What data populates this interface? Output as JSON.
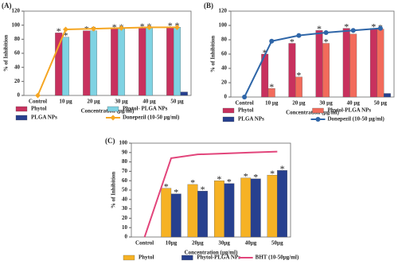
{
  "chart_data": [
    {
      "type": "combo",
      "panel_label": "(A)",
      "ylabel": "% of Inhibition",
      "xlabel": "Concentration (µg/ml)",
      "categories": [
        "Control",
        "10 µg",
        "20 µg",
        "30 µg",
        "40 µg",
        "50 µg"
      ],
      "ylim": [
        0,
        120
      ],
      "yticks": [
        0,
        20,
        40,
        60,
        80,
        100,
        120
      ],
      "series": [
        {
          "name": "Phytol",
          "type": "bar",
          "color": "#c8315e",
          "values": [
            null,
            89,
            92,
            95,
            96,
            97
          ],
          "annotations": [
            null,
            "*",
            "*",
            "*",
            "*",
            "*"
          ]
        },
        {
          "name": "Phytol- PLGA NPs",
          "type": "bar",
          "color": "#7fd3e3",
          "values": [
            null,
            83,
            92,
            95,
            96,
            97
          ],
          "annotations": [
            null,
            "*",
            "*",
            "*",
            "*",
            "*"
          ]
        },
        {
          "name": "PLGA NPs",
          "type": "bar",
          "color": "#27408f",
          "values": [
            null,
            null,
            null,
            null,
            null,
            5
          ]
        },
        {
          "name": "Donepezil (10-50 µg/ml)",
          "type": "line",
          "marker": "diamond",
          "color": "#f5a623",
          "values": [
            0,
            94,
            95,
            96,
            97,
            97
          ]
        }
      ]
    },
    {
      "type": "combo",
      "panel_label": "(B)",
      "ylabel": "% of Inhibition",
      "xlabel": "Concentration (µg/ml)",
      "categories": [
        "Control",
        "10 µg",
        "20 µg",
        "30 µg",
        "40 µg",
        "50 µg"
      ],
      "ylim": [
        0,
        120
      ],
      "yticks": [
        0,
        20,
        40,
        60,
        80,
        100,
        120
      ],
      "series": [
        {
          "name": "Phytol",
          "type": "bar",
          "color": "#c8315e",
          "values": [
            null,
            60,
            75,
            93,
            96,
            96
          ],
          "annotations": [
            null,
            "*",
            "*",
            "*",
            "*",
            "*"
          ]
        },
        {
          "name": "Phytol-PLGA NPs",
          "type": "bar",
          "color": "#f26b5b",
          "values": [
            null,
            12,
            28,
            75,
            88,
            95
          ],
          "annotations": [
            null,
            "*",
            "*",
            "*",
            "*",
            "*"
          ]
        },
        {
          "name": "PLGA NPs",
          "type": "bar",
          "color": "#27408f",
          "values": [
            null,
            null,
            null,
            null,
            null,
            5
          ]
        },
        {
          "name": "Donepezil (10-50 µg/ml)",
          "type": "line",
          "marker": "circle",
          "color": "#2f66a8",
          "values": [
            0,
            78,
            86,
            90,
            93,
            96
          ]
        }
      ]
    },
    {
      "type": "combo",
      "panel_label": "(C)",
      "ylabel": "% of Inhibition",
      "xlabel": "Concentration (µg/ml)",
      "categories": [
        "Control",
        "10µg",
        "20µg",
        "30µg",
        "40µg",
        "50µg"
      ],
      "ylim": [
        0,
        100
      ],
      "yticks": [
        0,
        10,
        20,
        30,
        40,
        50,
        60,
        70,
        80,
        90,
        100
      ],
      "series": [
        {
          "name": "Phytol",
          "type": "bar",
          "color": "#f6b224",
          "values": [
            null,
            52,
            56,
            60,
            63,
            66
          ],
          "annotations": [
            null,
            "*",
            "*",
            "*",
            "*",
            "*"
          ]
        },
        {
          "name": "Phytol-PLGA NPs",
          "type": "bar",
          "color": "#27408f",
          "values": [
            null,
            46,
            49,
            57,
            62,
            71
          ],
          "annotations": [
            null,
            "*",
            "*",
            "*",
            "*",
            "*"
          ]
        },
        {
          "name": "BHT (10-50µg/ml)",
          "type": "line",
          "marker": "none",
          "color": "#e2457b",
          "values": [
            0,
            84,
            88,
            89,
            90,
            91
          ]
        }
      ]
    }
  ]
}
